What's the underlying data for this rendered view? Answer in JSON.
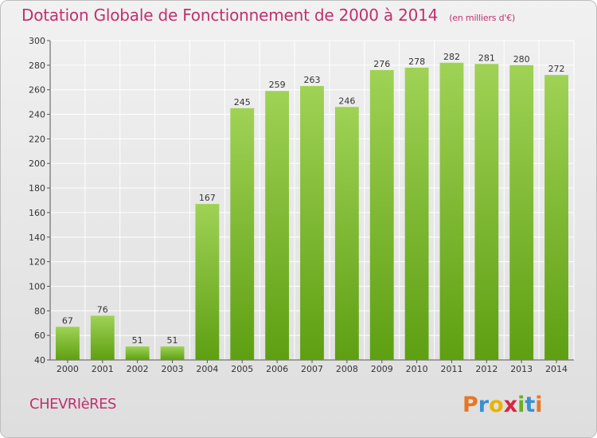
{
  "header": {
    "title": "Dotation Globale de Fonctionnement de 2000 à 2014",
    "unit": "(en milliers d'€)"
  },
  "commune": "CHEVRIèRES",
  "brand": "Proxiti",
  "colors": {
    "title": "#c0306e",
    "bar_top": "#9fd255",
    "bar_bottom": "#5e9f12",
    "grid": "#ffffff",
    "background": "#e6e6e6"
  },
  "chart_data": {
    "type": "bar",
    "title": "Dotation Globale de Fonctionnement de 2000 à 2014",
    "subtitle": "(en milliers d'€)",
    "xlabel": "",
    "ylabel": "",
    "categories": [
      "2000",
      "2001",
      "2002",
      "2003",
      "2004",
      "2005",
      "2006",
      "2007",
      "2008",
      "2009",
      "2010",
      "2011",
      "2012",
      "2013",
      "2014"
    ],
    "values": [
      67,
      76,
      51,
      51,
      167,
      245,
      259,
      263,
      246,
      276,
      278,
      282,
      281,
      280,
      272
    ],
    "ylim": [
      40,
      300
    ],
    "yticks": [
      40,
      60,
      80,
      100,
      120,
      140,
      160,
      180,
      200,
      220,
      240,
      260,
      280,
      300
    ],
    "grid": true,
    "legend": "none"
  }
}
